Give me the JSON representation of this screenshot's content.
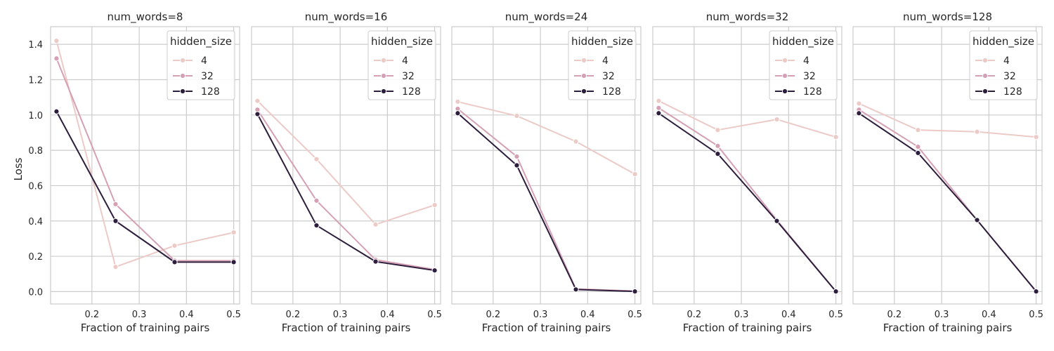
{
  "chart_data": {
    "type": "line",
    "ylabel": "Loss",
    "xlabel": "Fraction of training pairs",
    "xlim": [
      0.1125,
      0.5125
    ],
    "ylim": [
      -0.07,
      1.5
    ],
    "xticks": [
      0.2,
      0.3,
      0.4,
      0.5
    ],
    "xtick_labels": [
      "0.2",
      "0.3",
      "0.4",
      "0.5"
    ],
    "yticks": [
      0.0,
      0.2,
      0.4,
      0.6,
      0.8,
      1.0,
      1.2,
      1.4
    ],
    "ytick_labels": [
      "0.0",
      "0.2",
      "0.4",
      "0.6",
      "0.8",
      "1.0",
      "1.2",
      "1.4"
    ],
    "x": [
      0.125,
      0.25,
      0.375,
      0.5
    ],
    "legend": {
      "title": "hidden_size",
      "placement": "top-right",
      "entries": [
        {
          "label": "4",
          "color": "#eccac6"
        },
        {
          "label": "32",
          "color": "#d5a0b3"
        },
        {
          "label": "128",
          "color": "#2d1e3e"
        }
      ]
    },
    "panels": [
      {
        "title": "num_words=8",
        "series": [
          {
            "name": "4",
            "color": "#eccac6",
            "values": [
              1.42,
              0.14,
              0.26,
              0.335
            ]
          },
          {
            "name": "32",
            "color": "#d5a0b3",
            "values": [
              1.32,
              0.495,
              0.175,
              0.175
            ]
          },
          {
            "name": "128",
            "color": "#2d1e3e",
            "values": [
              1.02,
              0.4,
              0.167,
              0.167
            ]
          }
        ]
      },
      {
        "title": "num_words=16",
        "series": [
          {
            "name": "4",
            "color": "#eccac6",
            "values": [
              1.08,
              0.75,
              0.38,
              0.49
            ]
          },
          {
            "name": "32",
            "color": "#d5a0b3",
            "values": [
              1.03,
              0.515,
              0.18,
              0.125
            ]
          },
          {
            "name": "128",
            "color": "#2d1e3e",
            "values": [
              1.005,
              0.375,
              0.17,
              0.12
            ]
          }
        ]
      },
      {
        "title": "num_words=24",
        "series": [
          {
            "name": "4",
            "color": "#eccac6",
            "values": [
              1.075,
              0.995,
              0.85,
              0.665
            ]
          },
          {
            "name": "32",
            "color": "#d5a0b3",
            "values": [
              1.035,
              0.765,
              0.015,
              0.003
            ]
          },
          {
            "name": "128",
            "color": "#2d1e3e",
            "values": [
              1.01,
              0.715,
              0.012,
              0.001
            ]
          }
        ]
      },
      {
        "title": "num_words=32",
        "series": [
          {
            "name": "4",
            "color": "#eccac6",
            "values": [
              1.08,
              0.915,
              0.975,
              0.875
            ]
          },
          {
            "name": "32",
            "color": "#d5a0b3",
            "values": [
              1.04,
              0.825,
              0.405,
              0.002
            ]
          },
          {
            "name": "128",
            "color": "#2d1e3e",
            "values": [
              1.01,
              0.78,
              0.4,
              0.001
            ]
          }
        ]
      },
      {
        "title": "num_words=128",
        "series": [
          {
            "name": "4",
            "color": "#eccac6",
            "values": [
              1.065,
              0.915,
              0.905,
              0.875
            ]
          },
          {
            "name": "32",
            "color": "#d5a0b3",
            "values": [
              1.03,
              0.82,
              0.405,
              0.002
            ]
          },
          {
            "name": "128",
            "color": "#2d1e3e",
            "values": [
              1.01,
              0.785,
              0.405,
              0.001
            ]
          }
        ]
      }
    ]
  }
}
